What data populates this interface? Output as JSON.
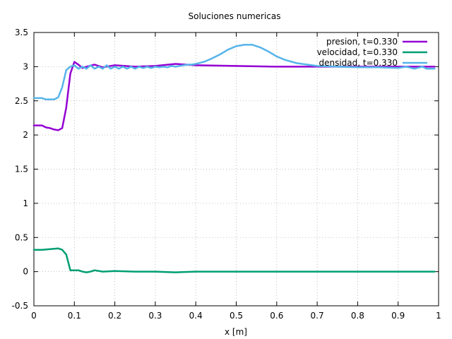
{
  "chart_data": {
    "type": "line",
    "title": "Soluciones numericas",
    "xlabel": "x [m]",
    "ylabel": "",
    "xlim": [
      0,
      1
    ],
    "ylim": [
      -0.5,
      3.5
    ],
    "x_ticks": [
      "0",
      "0.1",
      "0.2",
      "0.3",
      "0.4",
      "0.5",
      "0.6",
      "0.7",
      "0.8",
      "0.9",
      "1"
    ],
    "y_ticks": [
      "-0.5",
      "0",
      "0.5",
      "1",
      "1.5",
      "2",
      "2.5",
      "3",
      "3.5"
    ],
    "grid": true,
    "legend_position": "top-right",
    "series": [
      {
        "name": "presion, t=0.330",
        "color": "#9400d3",
        "x": [
          0,
          0.02,
          0.03,
          0.04,
          0.05,
          0.06,
          0.07,
          0.08,
          0.09,
          0.1,
          0.11,
          0.12,
          0.13,
          0.15,
          0.17,
          0.2,
          0.25,
          0.3,
          0.35,
          0.4,
          0.5,
          0.6,
          0.7,
          0.8,
          0.9,
          0.99
        ],
        "values": [
          2.14,
          2.14,
          2.11,
          2.1,
          2.08,
          2.07,
          2.1,
          2.4,
          2.9,
          3.07,
          3.03,
          2.98,
          3.0,
          3.03,
          2.99,
          3.02,
          3.0,
          3.01,
          3.04,
          3.02,
          3.01,
          3.0,
          3.0,
          3.0,
          3.0,
          3.0
        ]
      },
      {
        "name": "velocidad, t=0.330",
        "color": "#009e73",
        "x": [
          0,
          0.02,
          0.04,
          0.06,
          0.07,
          0.08,
          0.09,
          0.1,
          0.11,
          0.12,
          0.13,
          0.14,
          0.15,
          0.17,
          0.2,
          0.25,
          0.3,
          0.35,
          0.4,
          0.5,
          0.6,
          0.7,
          0.8,
          0.9,
          0.99
        ],
        "values": [
          0.32,
          0.32,
          0.33,
          0.34,
          0.32,
          0.25,
          0.02,
          0.02,
          0.02,
          0.0,
          -0.01,
          0.0,
          0.02,
          0.0,
          0.01,
          0.0,
          0.0,
          -0.01,
          0.0,
          0.0,
          0.0,
          0.0,
          0.0,
          0.0,
          0.0
        ]
      },
      {
        "name": "densidad, t=0.330",
        "color": "#56b4e9",
        "x": [
          0,
          0.02,
          0.03,
          0.05,
          0.06,
          0.07,
          0.08,
          0.09,
          0.1,
          0.11,
          0.12,
          0.13,
          0.14,
          0.15,
          0.16,
          0.17,
          0.18,
          0.19,
          0.2,
          0.21,
          0.22,
          0.23,
          0.24,
          0.25,
          0.26,
          0.27,
          0.28,
          0.29,
          0.3,
          0.31,
          0.32,
          0.33,
          0.34,
          0.35,
          0.36,
          0.37,
          0.38,
          0.39,
          0.4,
          0.42,
          0.44,
          0.46,
          0.48,
          0.5,
          0.52,
          0.54,
          0.56,
          0.58,
          0.6,
          0.62,
          0.65,
          0.7,
          0.75,
          0.8,
          0.85,
          0.9,
          0.92,
          0.94,
          0.96,
          0.97,
          0.99
        ],
        "values": [
          2.54,
          2.54,
          2.52,
          2.52,
          2.55,
          2.7,
          2.95,
          3.0,
          3.02,
          2.97,
          3.0,
          2.97,
          3.02,
          2.97,
          3.0,
          2.97,
          3.02,
          2.97,
          3.0,
          2.97,
          3.0,
          2.97,
          3.0,
          2.97,
          3.0,
          2.98,
          3.0,
          2.98,
          3.0,
          2.99,
          3.0,
          2.99,
          3.01,
          3.0,
          3.01,
          3.02,
          3.03,
          3.03,
          3.04,
          3.07,
          3.12,
          3.18,
          3.25,
          3.3,
          3.32,
          3.32,
          3.28,
          3.22,
          3.15,
          3.1,
          3.05,
          3.01,
          3.0,
          2.99,
          2.99,
          2.98,
          3.0,
          2.97,
          3.0,
          2.97,
          2.97
        ]
      }
    ]
  }
}
